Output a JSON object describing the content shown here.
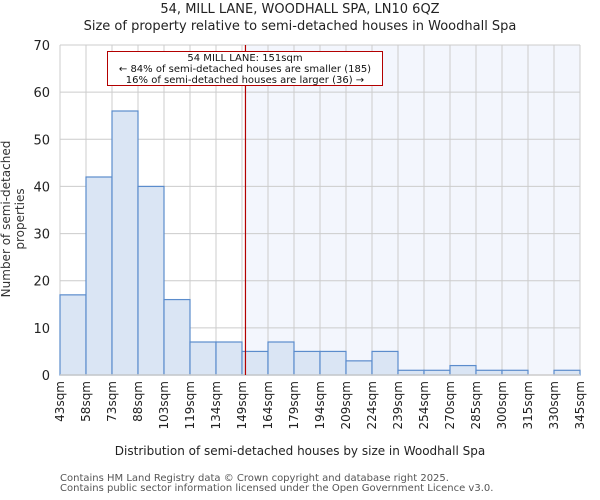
{
  "title": {
    "line1": "54, MILL LANE, WOODHALL SPA, LN10 6QZ",
    "line2": "Size of property relative to semi-detached houses in Woodhall Spa"
  },
  "axes": {
    "ylabel": "Number of semi-detached properties",
    "xlabel": "Distribution of semi-detached houses by size in Woodhall Spa"
  },
  "annotation": {
    "line1": "54 MILL LANE: 151sqm",
    "line2": "← 84% of semi-detached houses are smaller (185)",
    "line3": "16% of semi-detached houses are larger (36) →"
  },
  "footer": {
    "line1": "Contains HM Land Registry data © Crown copyright and database right 2025.",
    "line2": "Contains public sector information licensed under the Open Government Licence v3.0."
  },
  "colors": {
    "bar_fill": "#dae5f4",
    "bar_edge": "#5b8ccc",
    "highlight_bg": "#f3f6fd",
    "marker_line": "#b30000",
    "grid": "#cccccc"
  },
  "chart_data": {
    "type": "bar",
    "title": "54, MILL LANE, WOODHALL SPA, LN10 6QZ — Size of property relative to semi-detached houses in Woodhall Spa",
    "xlabel": "Distribution of semi-detached houses by size in Woodhall Spa",
    "ylabel": "Number of semi-detached properties",
    "ylim": [
      0,
      70
    ],
    "yticks": [
      0,
      10,
      20,
      30,
      40,
      50,
      60,
      70
    ],
    "xtick_labels": [
      "43sqm",
      "58sqm",
      "73sqm",
      "88sqm",
      "103sqm",
      "119sqm",
      "134sqm",
      "149sqm",
      "164sqm",
      "179sqm",
      "194sqm",
      "209sqm",
      "224sqm",
      "239sqm",
      "254sqm",
      "270sqm",
      "285sqm",
      "300sqm",
      "315sqm",
      "330sqm",
      "345sqm"
    ],
    "categories": [
      "43-58",
      "58-73",
      "73-88",
      "88-103",
      "103-119",
      "119-134",
      "134-149",
      "149-164",
      "164-179",
      "179-194",
      "194-209",
      "209-224",
      "224-239",
      "239-254",
      "254-270",
      "270-285",
      "285-300",
      "300-315",
      "315-330",
      "330-345"
    ],
    "values": [
      17,
      42,
      56,
      40,
      16,
      7,
      7,
      5,
      7,
      5,
      5,
      3,
      5,
      1,
      1,
      2,
      1,
      1,
      0,
      1
    ],
    "marker": {
      "value": 151,
      "label": "54 MILL LANE: 151sqm"
    },
    "grid": true,
    "legend": null
  }
}
